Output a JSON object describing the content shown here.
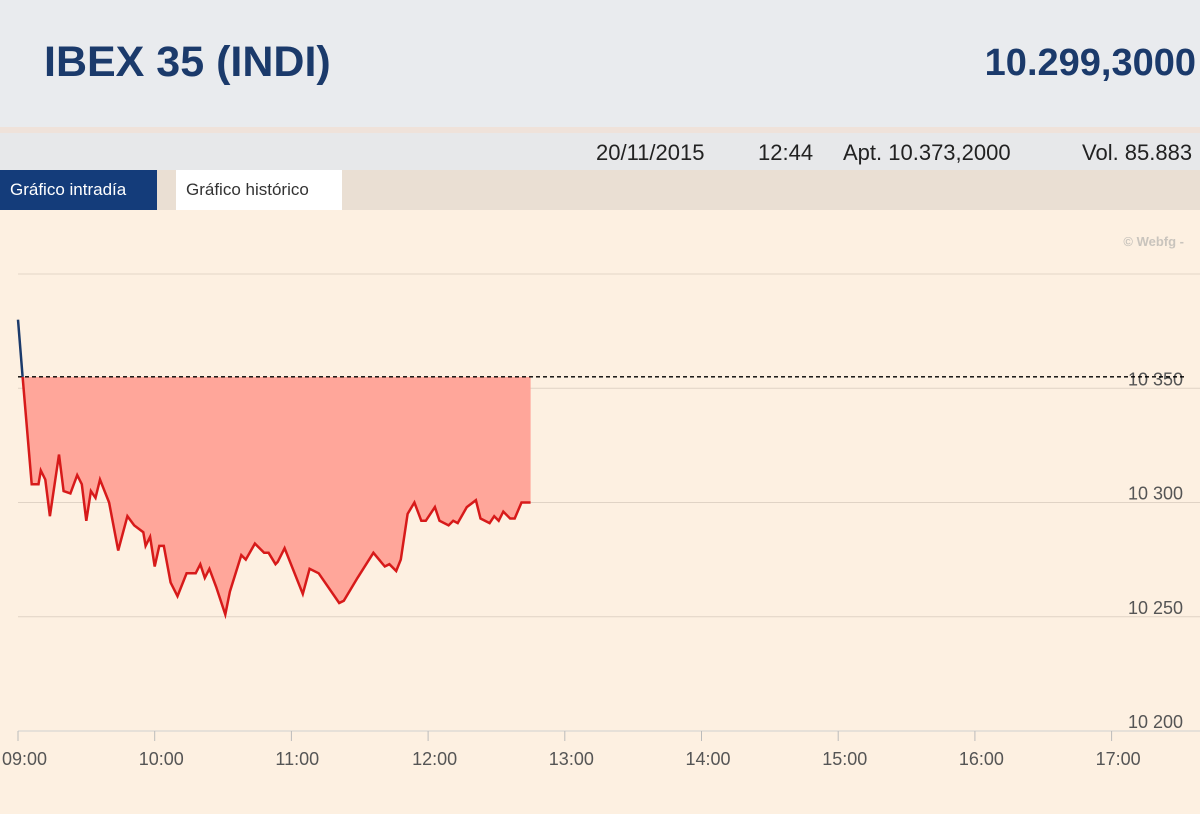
{
  "header": {
    "title": "IBEX 35 (INDI)",
    "price": "10.299,3000"
  },
  "info": {
    "date": "20/11/2015",
    "time": "12:44",
    "open": "Apt. 10.373,2000",
    "volume": "Vol. 85.883"
  },
  "tabs": [
    {
      "label": "Gráfico intradía",
      "active": true
    },
    {
      "label": "Gráfico histórico",
      "active": false
    }
  ],
  "credit": "© Webfg -",
  "chart_data": {
    "type": "area",
    "reference_value": 10355,
    "ylim": [
      10200,
      10400
    ],
    "y_ticks": [
      {
        "value": 10350,
        "label": "10 350"
      },
      {
        "value": 10300,
        "label": "10 300"
      },
      {
        "value": 10250,
        "label": "10 250"
      },
      {
        "value": 10200,
        "label": "10 200"
      }
    ],
    "x_ticks": [
      "09:00",
      "10:00",
      "11:00",
      "12:00",
      "13:00",
      "14:00",
      "15:00",
      "16:00",
      "17:00"
    ],
    "xlim": [
      "09:00",
      "17:00"
    ],
    "colors": {
      "below": "#d71a1a",
      "above": "#1b3a6b",
      "fill": "#ffa69a",
      "reference": "#000000"
    },
    "grid": true,
    "x": [
      "09:00",
      "09:02",
      "09:06",
      "09:09",
      "09:10",
      "09:12",
      "09:14",
      "09:18",
      "09:20",
      "09:23",
      "09:26",
      "09:28",
      "09:30",
      "09:32",
      "09:34",
      "09:36",
      "09:40",
      "09:44",
      "09:48",
      "09:51",
      "09:55",
      "09:56",
      "09:58",
      "10:00",
      "10:02",
      "10:04",
      "10:07",
      "10:10",
      "10:14",
      "10:18",
      "10:20",
      "10:22",
      "10:24",
      "10:27",
      "10:31",
      "10:33",
      "10:38",
      "10:40",
      "10:44",
      "10:48",
      "10:50",
      "10:53",
      "10:54",
      "10:57",
      "11:05",
      "11:08",
      "11:12",
      "11:21",
      "11:23",
      "11:29",
      "11:36",
      "11:41",
      "11:43",
      "11:46",
      "11:48",
      "11:51",
      "11:54",
      "11:57",
      "11:59",
      "12:03",
      "12:05",
      "12:09",
      "12:11",
      "12:13",
      "12:17",
      "12:21",
      "12:23",
      "12:27",
      "12:29",
      "12:31",
      "12:33",
      "12:36",
      "12:38",
      "12:41",
      "12:45"
    ],
    "values": [
      10380,
      10355,
      10308,
      10308,
      10314,
      10310,
      10294,
      10321,
      10305,
      10304,
      10312,
      10308,
      10292,
      10305,
      10302,
      10310,
      10300,
      10279,
      10294,
      10290,
      10287,
      10281,
      10285,
      10272,
      10281,
      10281,
      10265,
      10259,
      10269,
      10269,
      10273,
      10267,
      10271,
      10263,
      10251,
      10261,
      10277,
      10275,
      10282,
      10278,
      10278,
      10273,
      10274,
      10280,
      10260,
      10271,
      10269,
      10256,
      10257,
      10267,
      10278,
      10272,
      10273,
      10270,
      10275,
      10295,
      10300,
      10292,
      10292,
      10298,
      10292,
      10290,
      10292,
      10291,
      10298,
      10301,
      10293,
      10291,
      10294,
      10292,
      10296,
      10293,
      10293,
      10300,
      10300
    ]
  }
}
